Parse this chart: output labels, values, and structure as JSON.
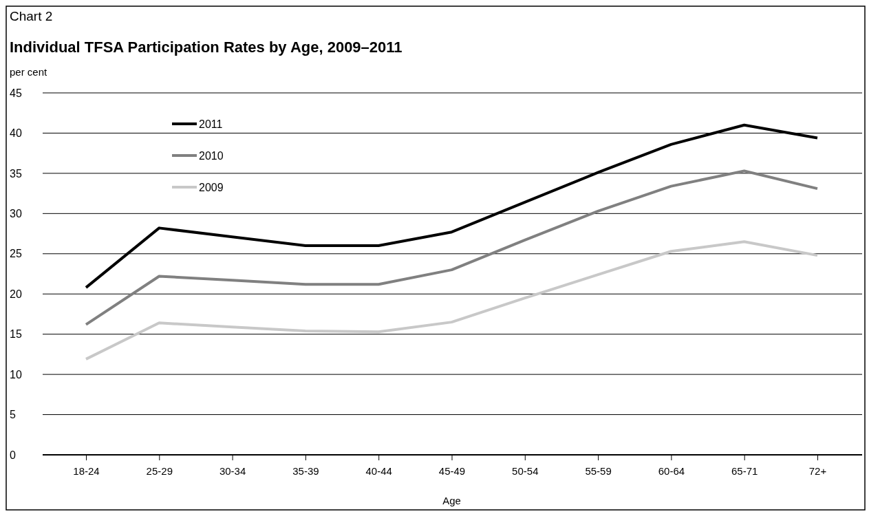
{
  "chart_data": {
    "type": "line",
    "title": "Individual TFSA Participation Rates by Age, 2009–2011",
    "annotations": [
      "Chart 2"
    ],
    "xlabel": "Age",
    "ylabel": "per cent",
    "categories": [
      "18-24",
      "25-29",
      "30-34",
      "35-39",
      "40-44",
      "45-49",
      "50-54",
      "55-59",
      "60-64",
      "65-71",
      "72+"
    ],
    "series": [
      {
        "name": "2011",
        "color": "#000000",
        "values": [
          20.8,
          28.2,
          27.1,
          26.0,
          26.0,
          27.7,
          31.4,
          35.1,
          38.6,
          41.0,
          39.4
        ]
      },
      {
        "name": "2010",
        "color": "#808080",
        "values": [
          16.2,
          22.2,
          21.7,
          21.2,
          21.2,
          23.0,
          26.7,
          30.3,
          33.4,
          35.3,
          33.1
        ]
      },
      {
        "name": "2009",
        "color": "#c8c8c8",
        "values": [
          11.9,
          16.4,
          15.9,
          15.4,
          15.3,
          16.5,
          19.5,
          22.4,
          25.3,
          26.5,
          24.8
        ]
      }
    ],
    "ylim": [
      0,
      45
    ],
    "yticks": [
      0,
      5,
      10,
      15,
      20,
      25,
      30,
      35,
      40,
      45
    ],
    "grid": "y",
    "legend": "top left",
    "marker": "none",
    "line_style": "solid"
  }
}
